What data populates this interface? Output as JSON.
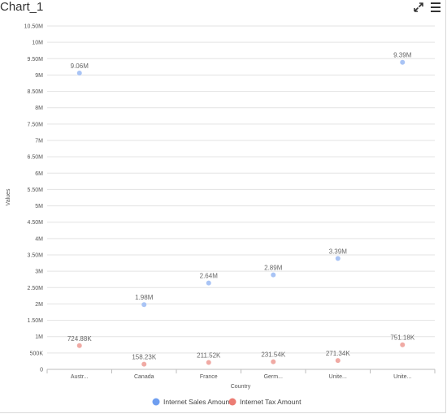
{
  "header": {
    "title": "Chart_1",
    "expand_icon": "expand-icon",
    "menu_icon": "hamburger-menu-icon"
  },
  "chart_data": {
    "type": "scatter",
    "xlabel": "Country",
    "ylabel": "Values",
    "categories": [
      "Austr...",
      "Canada",
      "France",
      "Germ...",
      "Unite...",
      "Unite..."
    ],
    "ylim": [
      0,
      10500000
    ],
    "yticks": [
      {
        "value": 0,
        "label": "0"
      },
      {
        "value": 500000,
        "label": "500K"
      },
      {
        "value": 1000000,
        "label": "1M"
      },
      {
        "value": 1500000,
        "label": "1.50M"
      },
      {
        "value": 2000000,
        "label": "2M"
      },
      {
        "value": 2500000,
        "label": "2.50M"
      },
      {
        "value": 3000000,
        "label": "3M"
      },
      {
        "value": 3500000,
        "label": "3.50M"
      },
      {
        "value": 4000000,
        "label": "4M"
      },
      {
        "value": 4500000,
        "label": "4.50M"
      },
      {
        "value": 5000000,
        "label": "5M"
      },
      {
        "value": 5500000,
        "label": "5.50M"
      },
      {
        "value": 6000000,
        "label": "6M"
      },
      {
        "value": 6500000,
        "label": "6.50M"
      },
      {
        "value": 7000000,
        "label": "7M"
      },
      {
        "value": 7500000,
        "label": "7.50M"
      },
      {
        "value": 8000000,
        "label": "8M"
      },
      {
        "value": 8500000,
        "label": "8.50M"
      },
      {
        "value": 9000000,
        "label": "9M"
      },
      {
        "value": 9500000,
        "label": "9.50M"
      },
      {
        "value": 10000000,
        "label": "10M"
      },
      {
        "value": 10500000,
        "label": "10.50M"
      }
    ],
    "grid": true,
    "legend_position": "bottom",
    "series": [
      {
        "name": "Internet Sales Amount",
        "color": "#a9c4f5",
        "legend_color": "#6f9ef0",
        "values": [
          9060000,
          1980000,
          2640000,
          2890000,
          3390000,
          9390000
        ],
        "labels": [
          "9.06M",
          "1.98M",
          "2.64M",
          "2.89M",
          "3.39M",
          "9.39M"
        ]
      },
      {
        "name": "Internet Tax Amount",
        "color": "#f0aaa4",
        "legend_color": "#ec7d74",
        "values": [
          724880,
          158230,
          211520,
          231540,
          271340,
          751180
        ],
        "labels": [
          "724.88K",
          "158.23K",
          "211.52K",
          "231.54K",
          "271.34K",
          "751.18K"
        ]
      }
    ]
  }
}
